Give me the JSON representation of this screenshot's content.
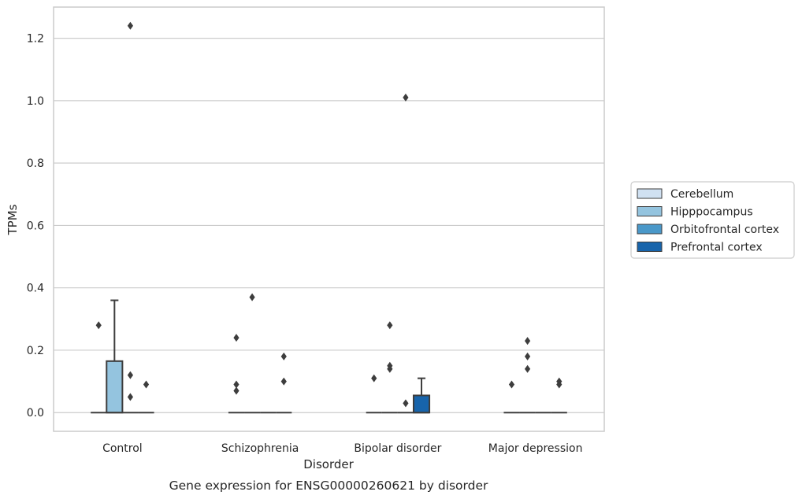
{
  "chart_data": {
    "type": "box",
    "caption": "Gene expression for ENSG00000260621 by disorder",
    "xlabel": "Disorder",
    "ylabel": "TPMs",
    "ylim": [
      -0.06,
      1.3
    ],
    "yticks": [
      0.0,
      0.2,
      0.4,
      0.6,
      0.8,
      1.0,
      1.2
    ],
    "ytick_labels": [
      "0.0",
      "0.2",
      "0.4",
      "0.6",
      "0.8",
      "1.0",
      "1.2"
    ],
    "grid": "horizontal",
    "legend_position": "right",
    "categories": [
      "Control",
      "Schizophrenia",
      "Bipolar disorder",
      "Major depression"
    ],
    "series": [
      {
        "name": "Cerebellum",
        "color": "#d0e1f2",
        "boxes": [
          {
            "q1": 0,
            "median": 0,
            "q3": 0,
            "whislo": 0,
            "whishi": 0,
            "fliers": [
              0.28
            ]
          },
          {
            "q1": 0,
            "median": 0,
            "q3": 0,
            "whislo": 0,
            "whishi": 0,
            "fliers": [
              0.24,
              0.09,
              0.07
            ]
          },
          {
            "q1": 0,
            "median": 0,
            "q3": 0,
            "whislo": 0,
            "whishi": 0,
            "fliers": [
              0.11
            ]
          },
          {
            "q1": 0,
            "median": 0,
            "q3": 0,
            "whislo": 0,
            "whishi": 0,
            "fliers": [
              0.09
            ]
          }
        ]
      },
      {
        "name": "Hipppocampus",
        "color": "#94c4df",
        "boxes": [
          {
            "q1": 0,
            "median": 0,
            "q3": 0.165,
            "whislo": 0,
            "whishi": 0.36,
            "fliers": []
          },
          {
            "q1": 0,
            "median": 0,
            "q3": 0,
            "whislo": 0,
            "whishi": 0,
            "fliers": [
              0.37
            ]
          },
          {
            "q1": 0,
            "median": 0,
            "q3": 0,
            "whislo": 0,
            "whishi": 0,
            "fliers": [
              0.28,
              0.15,
              0.14
            ]
          },
          {
            "q1": 0,
            "median": 0,
            "q3": 0,
            "whislo": 0,
            "whishi": 0,
            "fliers": [
              0.23,
              0.18,
              0.14
            ]
          }
        ]
      },
      {
        "name": "Orbitofrontal cortex",
        "color": "#4a98c9",
        "boxes": [
          {
            "q1": 0,
            "median": 0,
            "q3": 0,
            "whislo": 0,
            "whishi": 0,
            "fliers": [
              1.24,
              0.12,
              0.05
            ]
          },
          {
            "q1": 0,
            "median": 0,
            "q3": 0,
            "whislo": 0,
            "whishi": 0,
            "fliers": []
          },
          {
            "q1": 0,
            "median": 0,
            "q3": 0,
            "whislo": 0,
            "whishi": 0,
            "fliers": [
              1.01,
              0.03
            ]
          },
          {
            "q1": 0,
            "median": 0,
            "q3": 0,
            "whislo": 0,
            "whishi": 0,
            "fliers": []
          }
        ]
      },
      {
        "name": "Prefrontal cortex",
        "color": "#1764ab",
        "boxes": [
          {
            "q1": 0,
            "median": 0,
            "q3": 0,
            "whislo": 0,
            "whishi": 0,
            "fliers": [
              0.09
            ]
          },
          {
            "q1": 0,
            "median": 0,
            "q3": 0,
            "whislo": 0,
            "whishi": 0,
            "fliers": [
              0.18,
              0.1
            ]
          },
          {
            "q1": 0,
            "median": 0,
            "q3": 0.055,
            "whislo": 0,
            "whishi": 0.11,
            "fliers": []
          },
          {
            "q1": 0,
            "median": 0,
            "q3": 0,
            "whislo": 0,
            "whishi": 0,
            "fliers": [
              0.1,
              0.09
            ]
          }
        ]
      }
    ]
  }
}
